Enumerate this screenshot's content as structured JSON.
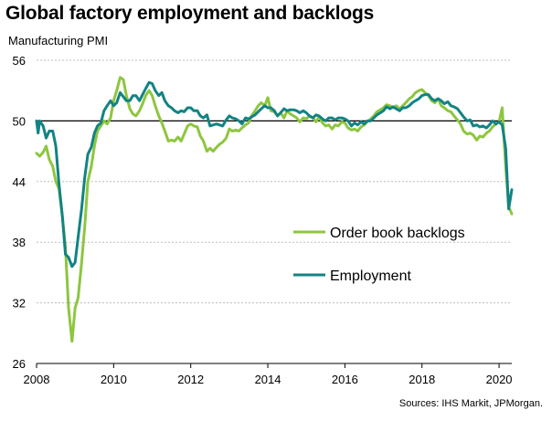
{
  "chart_data": {
    "type": "line",
    "title": "Global factory employment and backlogs",
    "ylabel": "Manufacturing  PMI",
    "source": "Sources: IHS Markit, JPMorgan.",
    "ylim": [
      26,
      56
    ],
    "yticks": [
      26,
      32,
      38,
      44,
      50,
      56
    ],
    "xlim": [
      2008,
      2020.33
    ],
    "xticks": [
      2008,
      2010,
      2012,
      2014,
      2016,
      2018,
      2020
    ],
    "reference_line": 50,
    "grid": "horizontal",
    "legend_position": "center-right",
    "series": [
      {
        "name": "Order book backlogs",
        "color": "#8dc63f",
        "points": [
          [
            2008.0,
            46.8
          ],
          [
            2008.08,
            46.5
          ],
          [
            2008.17,
            46.9
          ],
          [
            2008.25,
            47.5
          ],
          [
            2008.33,
            46.2
          ],
          [
            2008.42,
            45.5
          ],
          [
            2008.5,
            44.0
          ],
          [
            2008.58,
            43.3
          ],
          [
            2008.67,
            40.5
          ],
          [
            2008.75,
            37.5
          ],
          [
            2008.83,
            31.5
          ],
          [
            2008.92,
            28.2
          ],
          [
            2009.0,
            31.5
          ],
          [
            2009.08,
            32.5
          ],
          [
            2009.17,
            36.0
          ],
          [
            2009.25,
            39.5
          ],
          [
            2009.33,
            44.0
          ],
          [
            2009.42,
            45.5
          ],
          [
            2009.5,
            47.5
          ],
          [
            2009.58,
            49.0
          ],
          [
            2009.67,
            49.5
          ],
          [
            2009.75,
            50.0
          ],
          [
            2009.83,
            49.7
          ],
          [
            2009.92,
            50.3
          ],
          [
            2010.0,
            52.0
          ],
          [
            2010.08,
            53.0
          ],
          [
            2010.17,
            54.3
          ],
          [
            2010.25,
            54.1
          ],
          [
            2010.33,
            52.5
          ],
          [
            2010.42,
            51.2
          ],
          [
            2010.5,
            50.7
          ],
          [
            2010.58,
            50.5
          ],
          [
            2010.67,
            51.0
          ],
          [
            2010.75,
            51.7
          ],
          [
            2010.83,
            52.5
          ],
          [
            2010.92,
            53.0
          ],
          [
            2011.0,
            52.5
          ],
          [
            2011.08,
            51.5
          ],
          [
            2011.17,
            50.5
          ],
          [
            2011.25,
            49.8
          ],
          [
            2011.33,
            49.0
          ],
          [
            2011.42,
            48.0
          ],
          [
            2011.5,
            48.1
          ],
          [
            2011.58,
            48.0
          ],
          [
            2011.67,
            48.4
          ],
          [
            2011.75,
            48.0
          ],
          [
            2011.83,
            48.7
          ],
          [
            2011.92,
            49.5
          ],
          [
            2012.0,
            49.7
          ],
          [
            2012.08,
            49.5
          ],
          [
            2012.17,
            49.4
          ],
          [
            2012.25,
            48.5
          ],
          [
            2012.33,
            48.0
          ],
          [
            2012.42,
            47.0
          ],
          [
            2012.5,
            47.3
          ],
          [
            2012.58,
            47.0
          ],
          [
            2012.67,
            47.4
          ],
          [
            2012.75,
            47.7
          ],
          [
            2012.83,
            47.9
          ],
          [
            2012.92,
            48.3
          ],
          [
            2013.0,
            49.2
          ],
          [
            2013.08,
            49.0
          ],
          [
            2013.17,
            49.1
          ],
          [
            2013.25,
            49.0
          ],
          [
            2013.33,
            49.3
          ],
          [
            2013.42,
            49.6
          ],
          [
            2013.5,
            49.8
          ],
          [
            2013.58,
            50.5
          ],
          [
            2013.67,
            51.0
          ],
          [
            2013.75,
            51.5
          ],
          [
            2013.83,
            51.8
          ],
          [
            2013.92,
            51.5
          ],
          [
            2014.0,
            52.3
          ],
          [
            2014.08,
            51.0
          ],
          [
            2014.17,
            50.9
          ],
          [
            2014.25,
            50.5
          ],
          [
            2014.33,
            50.8
          ],
          [
            2014.42,
            50.3
          ],
          [
            2014.5,
            51.0
          ],
          [
            2014.58,
            50.7
          ],
          [
            2014.67,
            50.5
          ],
          [
            2014.75,
            50.3
          ],
          [
            2014.83,
            49.9
          ],
          [
            2014.92,
            50.3
          ],
          [
            2015.0,
            50.2
          ],
          [
            2015.08,
            50.5
          ],
          [
            2015.17,
            50.3
          ],
          [
            2015.25,
            49.9
          ],
          [
            2015.33,
            50.4
          ],
          [
            2015.42,
            49.8
          ],
          [
            2015.5,
            49.5
          ],
          [
            2015.58,
            49.6
          ],
          [
            2015.67,
            49.2
          ],
          [
            2015.75,
            49.6
          ],
          [
            2015.83,
            49.5
          ],
          [
            2015.92,
            49.9
          ],
          [
            2016.0,
            49.8
          ],
          [
            2016.08,
            49.3
          ],
          [
            2016.17,
            49.1
          ],
          [
            2016.25,
            49.2
          ],
          [
            2016.33,
            49.0
          ],
          [
            2016.42,
            49.4
          ],
          [
            2016.5,
            49.6
          ],
          [
            2016.58,
            49.9
          ],
          [
            2016.67,
            50.2
          ],
          [
            2016.75,
            50.5
          ],
          [
            2016.83,
            50.9
          ],
          [
            2016.92,
            51.1
          ],
          [
            2017.0,
            51.3
          ],
          [
            2017.08,
            51.6
          ],
          [
            2017.17,
            51.5
          ],
          [
            2017.25,
            51.3
          ],
          [
            2017.33,
            51.5
          ],
          [
            2017.42,
            51.2
          ],
          [
            2017.5,
            51.5
          ],
          [
            2017.58,
            51.8
          ],
          [
            2017.67,
            52.2
          ],
          [
            2017.75,
            52.4
          ],
          [
            2017.83,
            52.8
          ],
          [
            2017.92,
            53.0
          ],
          [
            2018.0,
            53.1
          ],
          [
            2018.08,
            52.8
          ],
          [
            2018.17,
            52.5
          ],
          [
            2018.25,
            52.0
          ],
          [
            2018.33,
            51.8
          ],
          [
            2018.42,
            52.2
          ],
          [
            2018.5,
            51.5
          ],
          [
            2018.58,
            51.3
          ],
          [
            2018.67,
            51.0
          ],
          [
            2018.75,
            50.9
          ],
          [
            2018.83,
            50.5
          ],
          [
            2018.92,
            50.1
          ],
          [
            2019.0,
            49.7
          ],
          [
            2019.08,
            49.0
          ],
          [
            2019.17,
            48.7
          ],
          [
            2019.25,
            48.8
          ],
          [
            2019.33,
            48.6
          ],
          [
            2019.42,
            48.1
          ],
          [
            2019.5,
            48.5
          ],
          [
            2019.58,
            48.4
          ],
          [
            2019.67,
            48.8
          ],
          [
            2019.75,
            49.0
          ],
          [
            2019.83,
            49.4
          ],
          [
            2019.92,
            49.7
          ],
          [
            2020.0,
            49.9
          ],
          [
            2020.08,
            51.3
          ],
          [
            2020.17,
            45.5
          ],
          [
            2020.25,
            41.5
          ],
          [
            2020.33,
            40.8
          ]
        ]
      },
      {
        "name": "Employment",
        "color": "#138383",
        "points": [
          [
            2008.0,
            50.0
          ],
          [
            2008.04,
            48.8
          ],
          [
            2008.08,
            50.0
          ],
          [
            2008.17,
            49.5
          ],
          [
            2008.25,
            48.3
          ],
          [
            2008.33,
            49.0
          ],
          [
            2008.42,
            49.0
          ],
          [
            2008.5,
            47.5
          ],
          [
            2008.58,
            43.8
          ],
          [
            2008.67,
            40.5
          ],
          [
            2008.75,
            36.8
          ],
          [
            2008.83,
            36.5
          ],
          [
            2008.92,
            35.6
          ],
          [
            2009.0,
            36.0
          ],
          [
            2009.08,
            38.5
          ],
          [
            2009.17,
            41.3
          ],
          [
            2009.25,
            44.4
          ],
          [
            2009.33,
            46.7
          ],
          [
            2009.42,
            47.4
          ],
          [
            2009.5,
            48.8
          ],
          [
            2009.58,
            49.5
          ],
          [
            2009.67,
            49.8
          ],
          [
            2009.75,
            51.0
          ],
          [
            2009.83,
            51.5
          ],
          [
            2009.92,
            52.0
          ],
          [
            2010.0,
            51.5
          ],
          [
            2010.08,
            51.8
          ],
          [
            2010.17,
            52.8
          ],
          [
            2010.25,
            52.4
          ],
          [
            2010.33,
            52.0
          ],
          [
            2010.42,
            52.0
          ],
          [
            2010.5,
            52.5
          ],
          [
            2010.58,
            52.5
          ],
          [
            2010.67,
            52.0
          ],
          [
            2010.75,
            52.6
          ],
          [
            2010.83,
            53.2
          ],
          [
            2010.92,
            53.8
          ],
          [
            2011.0,
            53.7
          ],
          [
            2011.08,
            53.0
          ],
          [
            2011.17,
            52.5
          ],
          [
            2011.25,
            52.8
          ],
          [
            2011.33,
            52.0
          ],
          [
            2011.42,
            51.5
          ],
          [
            2011.5,
            51.3
          ],
          [
            2011.58,
            51.0
          ],
          [
            2011.67,
            50.8
          ],
          [
            2011.75,
            51.0
          ],
          [
            2011.83,
            50.9
          ],
          [
            2011.92,
            51.3
          ],
          [
            2012.0,
            51.3
          ],
          [
            2012.08,
            51.0
          ],
          [
            2012.17,
            51.0
          ],
          [
            2012.25,
            50.5
          ],
          [
            2012.33,
            50.3
          ],
          [
            2012.42,
            50.6
          ],
          [
            2012.5,
            49.5
          ],
          [
            2012.58,
            49.6
          ],
          [
            2012.67,
            49.7
          ],
          [
            2012.75,
            49.6
          ],
          [
            2012.83,
            49.5
          ],
          [
            2012.92,
            50.1
          ],
          [
            2013.0,
            50.5
          ],
          [
            2013.08,
            50.3
          ],
          [
            2013.17,
            50.2
          ],
          [
            2013.25,
            50.0
          ],
          [
            2013.33,
            49.7
          ],
          [
            2013.42,
            50.3
          ],
          [
            2013.5,
            50.2
          ],
          [
            2013.58,
            50.4
          ],
          [
            2013.67,
            50.6
          ],
          [
            2013.75,
            50.9
          ],
          [
            2013.83,
            51.2
          ],
          [
            2013.92,
            51.5
          ],
          [
            2014.0,
            51.3
          ],
          [
            2014.08,
            51.3
          ],
          [
            2014.17,
            51.0
          ],
          [
            2014.25,
            50.5
          ],
          [
            2014.33,
            50.8
          ],
          [
            2014.42,
            51.2
          ],
          [
            2014.5,
            51.0
          ],
          [
            2014.58,
            51.1
          ],
          [
            2014.67,
            51.1
          ],
          [
            2014.75,
            51.0
          ],
          [
            2014.83,
            50.8
          ],
          [
            2014.92,
            51.0
          ],
          [
            2015.0,
            50.8
          ],
          [
            2015.08,
            50.5
          ],
          [
            2015.17,
            50.3
          ],
          [
            2015.25,
            50.6
          ],
          [
            2015.33,
            50.5
          ],
          [
            2015.42,
            50.2
          ],
          [
            2015.5,
            50.0
          ],
          [
            2015.58,
            50.3
          ],
          [
            2015.67,
            50.3
          ],
          [
            2015.75,
            50.1
          ],
          [
            2015.83,
            50.3
          ],
          [
            2015.92,
            50.3
          ],
          [
            2016.0,
            50.2
          ],
          [
            2016.08,
            50.0
          ],
          [
            2016.17,
            49.5
          ],
          [
            2016.25,
            49.8
          ],
          [
            2016.33,
            49.6
          ],
          [
            2016.42,
            49.9
          ],
          [
            2016.5,
            49.7
          ],
          [
            2016.58,
            50.0
          ],
          [
            2016.67,
            50.0
          ],
          [
            2016.75,
            50.3
          ],
          [
            2016.83,
            50.6
          ],
          [
            2016.92,
            50.8
          ],
          [
            2017.0,
            51.0
          ],
          [
            2017.08,
            51.4
          ],
          [
            2017.17,
            51.2
          ],
          [
            2017.25,
            51.4
          ],
          [
            2017.33,
            51.2
          ],
          [
            2017.42,
            51.0
          ],
          [
            2017.5,
            51.3
          ],
          [
            2017.58,
            51.3
          ],
          [
            2017.67,
            51.5
          ],
          [
            2017.75,
            51.8
          ],
          [
            2017.83,
            52.0
          ],
          [
            2017.92,
            52.2
          ],
          [
            2018.0,
            52.5
          ],
          [
            2018.08,
            52.6
          ],
          [
            2018.17,
            52.6
          ],
          [
            2018.25,
            52.2
          ],
          [
            2018.33,
            52.0
          ],
          [
            2018.42,
            52.2
          ],
          [
            2018.5,
            52.0
          ],
          [
            2018.58,
            51.7
          ],
          [
            2018.67,
            51.9
          ],
          [
            2018.75,
            51.5
          ],
          [
            2018.83,
            51.4
          ],
          [
            2018.92,
            51.2
          ],
          [
            2019.0,
            50.8
          ],
          [
            2019.08,
            50.4
          ],
          [
            2019.17,
            50.0
          ],
          [
            2019.25,
            50.1
          ],
          [
            2019.33,
            49.5
          ],
          [
            2019.42,
            49.6
          ],
          [
            2019.5,
            49.4
          ],
          [
            2019.58,
            49.5
          ],
          [
            2019.67,
            49.3
          ],
          [
            2019.75,
            49.6
          ],
          [
            2019.83,
            50.0
          ],
          [
            2019.92,
            49.7
          ],
          [
            2020.0,
            49.9
          ],
          [
            2020.08,
            49.6
          ],
          [
            2020.17,
            47.3
          ],
          [
            2020.25,
            41.3
          ],
          [
            2020.33,
            43.2
          ]
        ]
      }
    ]
  }
}
